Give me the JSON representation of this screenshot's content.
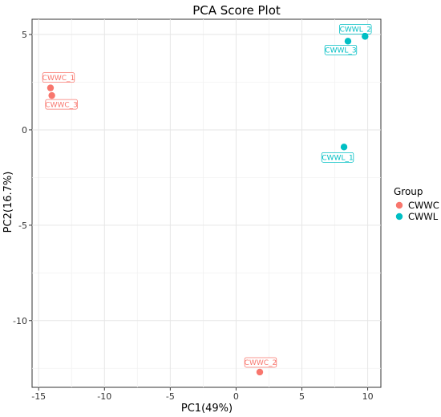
{
  "chart_data": {
    "type": "scatter",
    "title": "PCA Score Plot",
    "xlabel": "PC1(49%)",
    "ylabel": "PC2(16.7%)",
    "xlim": [
      -15.5,
      11
    ],
    "ylim": [
      -13.5,
      5.8
    ],
    "xticks": [
      -15,
      -10,
      -5,
      0,
      5,
      10
    ],
    "yticks": [
      5,
      0,
      -5,
      -10
    ],
    "grid": true,
    "legend": {
      "title": "Group",
      "position": "right"
    },
    "series": [
      {
        "name": "CWWC",
        "color": "#F8766D",
        "points": [
          {
            "label": "CWWC_1",
            "x": -14.1,
            "y": 2.2
          },
          {
            "label": "CWWC_2",
            "x": 1.8,
            "y": -12.7
          },
          {
            "label": "CWWC_3",
            "x": -14.0,
            "y": 1.8
          }
        ]
      },
      {
        "name": "CWWL",
        "color": "#00BFC4",
        "points": [
          {
            "label": "CWWL_1",
            "x": 8.2,
            "y": -0.9
          },
          {
            "label": "CWWL_2",
            "x": 9.8,
            "y": 4.9
          },
          {
            "label": "CWWL_3",
            "x": 8.5,
            "y": 4.65
          }
        ]
      }
    ]
  }
}
